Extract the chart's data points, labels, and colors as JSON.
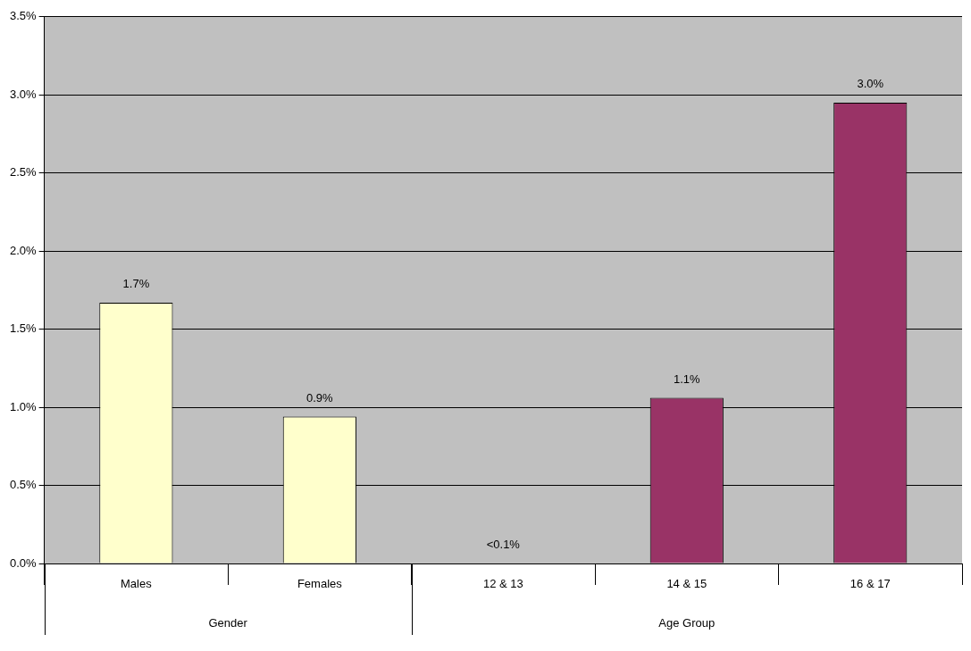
{
  "chart_data": {
    "type": "bar",
    "categories": [
      "Males",
      "Females",
      "12 & 13",
      "14 & 15",
      "16 & 17"
    ],
    "values": [
      1.67,
      0.94,
      0,
      1.06,
      2.95
    ],
    "colors": [
      "#ffffcc",
      "#ffffcc",
      "#993366",
      "#993366",
      "#993366"
    ],
    "value_labels": [
      "1.7%",
      "0.9%",
      "<0.1%",
      "1.1%",
      "3.0%"
    ],
    "annotations": [
      "Gender",
      "Age Group"
    ],
    "ylim": [
      0,
      3.5
    ],
    "yticks": [
      {
        "value": 0,
        "label": "0.0%"
      },
      {
        "value": 0.5,
        "label": "0.5%"
      },
      {
        "value": 1,
        "label": "1.0%"
      },
      {
        "value": 1.5,
        "label": "1.5%"
      },
      {
        "value": 2,
        "label": "2.0%"
      },
      {
        "value": 2.5,
        "label": "2.5%"
      },
      {
        "value": 3,
        "label": "3.0%"
      },
      {
        "value": 3.5,
        "label": "3.5%"
      }
    ],
    "grid": "y",
    "legend": false
  }
}
